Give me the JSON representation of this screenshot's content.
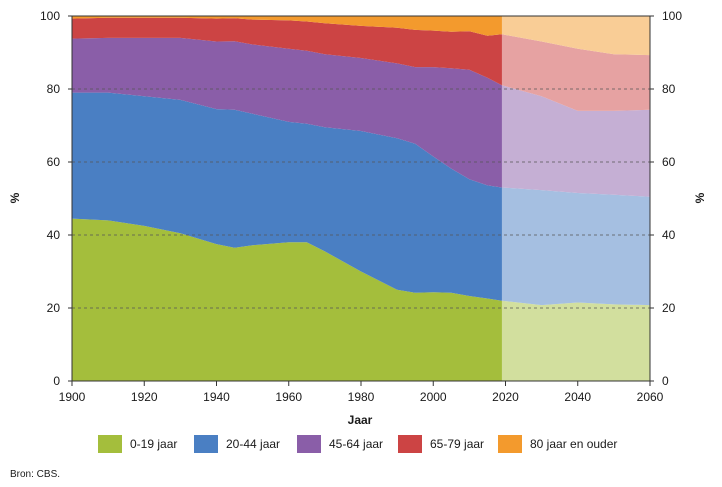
{
  "chart_data": {
    "type": "area",
    "stacked": true,
    "xlabel": "Jaar",
    "ylabel_left": "%",
    "ylabel_right": "%",
    "xlim": [
      1900,
      2060
    ],
    "ylim": [
      0,
      100
    ],
    "x_ticks": [
      "1900",
      "1920",
      "1940",
      "1960",
      "1980",
      "2000",
      "2020",
      "2040",
      "2060"
    ],
    "y_ticks": [
      "0",
      "20",
      "40",
      "60",
      "80",
      "100"
    ],
    "gridlines": "dashed horizontal",
    "forecast_from": 2019,
    "legend_position": "bottom",
    "source": "Bron: CBS.",
    "x": [
      1900,
      1910,
      1920,
      1930,
      1940,
      1945,
      1950,
      1960,
      1965,
      1970,
      1980,
      1990,
      1995,
      2000,
      2005,
      2010,
      2015,
      2019,
      2030,
      2040,
      2050,
      2060
    ],
    "series": [
      {
        "name": "0-19 jaar",
        "color": "#a4be3c",
        "values": [
          44.5,
          44,
          42.5,
          40.5,
          37.5,
          36.5,
          37.2,
          38,
          38,
          35.5,
          30,
          25,
          24.2,
          24.3,
          24.2,
          23.3,
          22.6,
          22,
          20.8,
          21.5,
          21,
          20.8
        ]
      },
      {
        "name": "20-44 jaar",
        "color": "#4a7fc3",
        "values": [
          34.5,
          35,
          35.5,
          36.5,
          37,
          37.8,
          36,
          33,
          32.5,
          34,
          38.5,
          41.5,
          40.8,
          37.2,
          34,
          32,
          31,
          31,
          31.5,
          30,
          30,
          29.7
        ]
      },
      {
        "name": "45-64 jaar",
        "color": "#8a5ea8",
        "values": [
          14.8,
          15,
          16,
          17,
          18.5,
          18.8,
          19,
          20,
          20,
          20,
          20,
          20.5,
          21,
          24.5,
          27.5,
          30,
          29.5,
          28,
          25.7,
          22.5,
          23,
          23.8
        ]
      },
      {
        "name": "65-79 jaar",
        "color": "#cc4444",
        "values": [
          5.5,
          5.5,
          5.5,
          5.5,
          6.3,
          6.3,
          6.8,
          7.8,
          8,
          8.5,
          8.8,
          9.8,
          10.2,
          10,
          10,
          10.5,
          11.5,
          14,
          15,
          17,
          15.5,
          15
        ]
      },
      {
        "name": "80 jaar en ouder",
        "color": "#f39a2d",
        "values": [
          0.7,
          0.5,
          0.5,
          0.5,
          0.7,
          0.6,
          1,
          1.2,
          1.5,
          2,
          2.7,
          3.2,
          3.8,
          4,
          4.3,
          4.2,
          5.4,
          5,
          7,
          9,
          10.5,
          10.7
        ]
      }
    ]
  }
}
